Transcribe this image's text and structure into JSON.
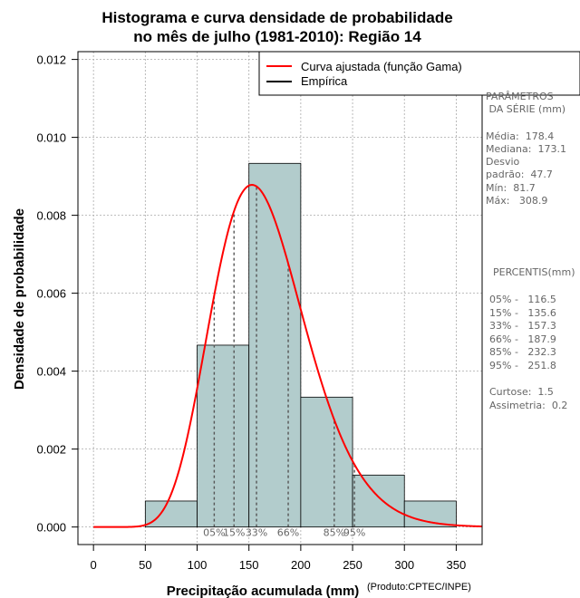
{
  "chart_data": {
    "type": "histogram",
    "title_line1": "Histograma e curva densidade de probabilidade",
    "title_line2": "no mês de julho (1981-2010): Região 14",
    "xlabel": "Precipitação acumulada (mm)",
    "ylabel": "Densidade de probabilidade",
    "credit": "(Produto:CPTEC/INPE)",
    "xlim": [
      -15,
      375
    ],
    "ylim": [
      -0.00045,
      0.0122
    ],
    "xticks": [
      0,
      50,
      100,
      150,
      200,
      250,
      300,
      350
    ],
    "yticks": [
      0.0,
      0.002,
      0.004,
      0.006,
      0.008,
      0.01,
      0.012
    ],
    "ytick_labels": [
      "0.000",
      "0.002",
      "0.004",
      "0.006",
      "0.008",
      "0.010",
      "0.012"
    ],
    "bins": [
      {
        "from": 50,
        "to": 100,
        "density": 0.000667
      },
      {
        "from": 100,
        "to": 150,
        "density": 0.004667
      },
      {
        "from": 150,
        "to": 200,
        "density": 0.009333
      },
      {
        "from": 200,
        "to": 250,
        "density": 0.003333
      },
      {
        "from": 250,
        "to": 300,
        "density": 0.001333
      },
      {
        "from": 300,
        "to": 350,
        "density": 0.000667
      }
    ],
    "curve": {
      "name": "Curva ajustada (função Gama)",
      "distribution": "gamma",
      "shape": 12.5,
      "scale": 13.3,
      "x_range": [
        0,
        375
      ],
      "color": "#ff0000"
    },
    "legend": [
      {
        "label": "Curva ajustada (função Gama)",
        "color": "#ff0000"
      },
      {
        "label": "Empírica",
        "color": "#000000"
      }
    ],
    "percentile_lines": [
      {
        "label": "05%",
        "value": 116.5
      },
      {
        "label": "15%",
        "value": 135.6
      },
      {
        "label": "33%",
        "value": 157.3
      },
      {
        "label": "66%",
        "value": 187.9
      },
      {
        "label": "85%",
        "value": 232.3
      },
      {
        "label": "95%",
        "value": 251.8
      }
    ],
    "bar_color": "#b2cccc",
    "grid": true
  },
  "stats_panel": {
    "params_title_1": "PARÂMETROS",
    "params_title_2": " DA SÉRIE (mm)",
    "media": "Média:  178.4",
    "mediana": "Mediana:  173.1",
    "desvio_1": "Desvio",
    "desvio_2": "padrão:  47.7",
    "min": "Mín:  81.7",
    "max": "Máx:   308.9",
    "percentis_title": "PERCENTIS(mm)",
    "p05": "05% -   116.5",
    "p15": "15% -   135.6",
    "p33": "33% -   157.3",
    "p66": "66% -   187.9",
    "p85": "85% -   232.3",
    "p95": "95% -   251.8",
    "curtose": "Curtose:  1.5",
    "assimetria": "Assimetria:  0.2"
  }
}
